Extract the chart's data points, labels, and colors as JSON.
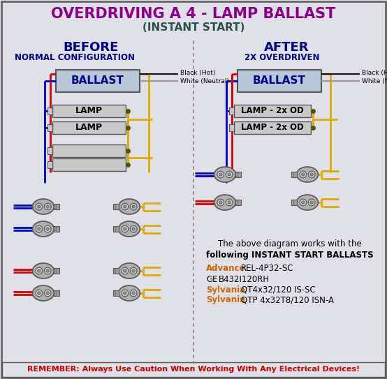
{
  "title_line1": "OVERDRIVING A 4 - LAMP BALLAST",
  "title_line2": "(INSTANT START)",
  "title_color": "#8B008B",
  "subtitle2_color": "#2F4F4F",
  "bg_color": "#E0E0E8",
  "before_label": "BEFORE",
  "before_sub": "NORMAL CONFIGURATION",
  "after_label": "AFTER",
  "after_sub": "2X OVERDRIVEN",
  "ballast_color": "#B8C8D8",
  "ballast_text_color": "#00008B",
  "lamp_color": "#C8C8C8",
  "lamp_text": "LAMP",
  "lamp_od_text": "LAMP - 2x OD",
  "wire_red": "#DD0000",
  "wire_blue": "#0000CC",
  "wire_yellow": "#DDAA00",
  "wire_black": "#111111",
  "wire_white": "#999999",
  "socket_body": "#A0A0A0",
  "socket_ring": "#888888",
  "dashed_color": "#888888",
  "section_color": "#00008B",
  "remember_color": "#CC0000",
  "remember_text": "REMEMBER: Always Use Caution When Working With Any Electrical Devices!",
  "advance_color": "#CC6600",
  "sylvania_color": "#CC6600",
  "info_line1": "The above diagram works with the",
  "info_line2": "following INSTANT START BALLASTS",
  "advance_label": "Advance",
  "advance_val": "REL-4P32-SC",
  "ge_label": "GE",
  "ge_val": "B432I120RH",
  "syl1_label": "Sylvania",
  "syl1_val": "QT4x32/120 IS-SC",
  "syl2_label": "Sylvania",
  "syl2_val": "QTP 4x32T8/120 ISN-A",
  "black_hot": "Black (Hot)",
  "white_neutral": "White (Neutral)"
}
